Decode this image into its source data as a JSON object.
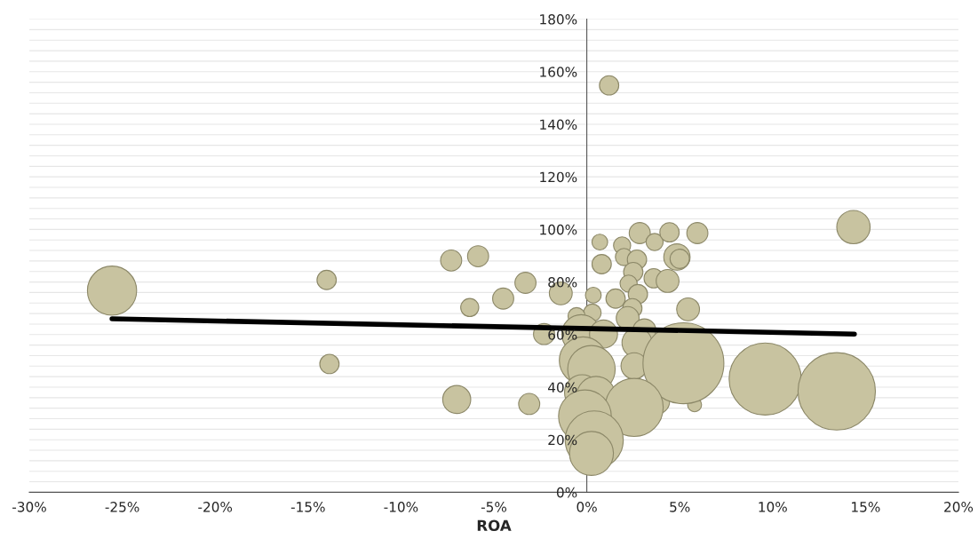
{
  "chart_data": {
    "type": "bubble",
    "xlabel": "ROA",
    "xlim": [
      -30,
      20
    ],
    "ylim": [
      0,
      180
    ],
    "xticks": [
      {
        "value": -30,
        "label": "-30%"
      },
      {
        "value": -25,
        "label": "-25%"
      },
      {
        "value": -20,
        "label": "-20%"
      },
      {
        "value": -15,
        "label": "-15%"
      },
      {
        "value": -10,
        "label": "-10%"
      },
      {
        "value": -5,
        "label": "-5%"
      },
      {
        "value": 0,
        "label": "0%"
      },
      {
        "value": 5,
        "label": "5%"
      },
      {
        "value": 10,
        "label": "10%"
      },
      {
        "value": 15,
        "label": "15%"
      },
      {
        "value": 20,
        "label": "20%"
      }
    ],
    "yticks": [
      {
        "value": 0,
        "label": "0%"
      },
      {
        "value": 4,
        "label": null
      },
      {
        "value": 8,
        "label": null
      },
      {
        "value": 12,
        "label": null
      },
      {
        "value": 16,
        "label": null
      },
      {
        "value": 20,
        "label": "20%"
      },
      {
        "value": 24,
        "label": null
      },
      {
        "value": 28,
        "label": null
      },
      {
        "value": 32,
        "label": null
      },
      {
        "value": 36,
        "label": null
      },
      {
        "value": 40,
        "label": "40%"
      },
      {
        "value": 44,
        "label": null
      },
      {
        "value": 48,
        "label": null
      },
      {
        "value": 52,
        "label": null
      },
      {
        "value": 56,
        "label": null
      },
      {
        "value": 60,
        "label": "60%"
      },
      {
        "value": 64,
        "label": null
      },
      {
        "value": 68,
        "label": null
      },
      {
        "value": 72,
        "label": null
      },
      {
        "value": 76,
        "label": null
      },
      {
        "value": 80,
        "label": "80%"
      },
      {
        "value": 84,
        "label": null
      },
      {
        "value": 88,
        "label": null
      },
      {
        "value": 92,
        "label": null
      },
      {
        "value": 96,
        "label": null
      },
      {
        "value": 100,
        "label": "100%"
      },
      {
        "value": 104,
        "label": null
      },
      {
        "value": 108,
        "label": null
      },
      {
        "value": 112,
        "label": null
      },
      {
        "value": 116,
        "label": null
      },
      {
        "value": 120,
        "label": "120%"
      },
      {
        "value": 124,
        "label": null
      },
      {
        "value": 128,
        "label": null
      },
      {
        "value": 132,
        "label": null
      },
      {
        "value": 136,
        "label": null
      },
      {
        "value": 140,
        "label": "140%"
      },
      {
        "value": 144,
        "label": null
      },
      {
        "value": 148,
        "label": null
      },
      {
        "value": 152,
        "label": null
      },
      {
        "value": 156,
        "label": null
      },
      {
        "value": 160,
        "label": "160%"
      },
      {
        "value": 164,
        "label": null
      },
      {
        "value": 168,
        "label": null
      },
      {
        "value": 172,
        "label": null
      },
      {
        "value": 176,
        "label": null
      },
      {
        "value": 180,
        "label": "180%"
      }
    ],
    "grid": "y",
    "series": [
      {
        "color": "#c8c3a0",
        "x": [
          -25.55,
          -14.0,
          -13.85,
          -7.3,
          -5.85,
          -6.3,
          -7.0,
          -3.1,
          -4.5,
          -3.3,
          -1.4,
          -2.3,
          0.35,
          0.7,
          0.8,
          1.9,
          2.0,
          2.85,
          2.7,
          2.5,
          3.65,
          4.45,
          5.95,
          4.85,
          5.0,
          3.6,
          4.35,
          2.25,
          2.75,
          1.55,
          2.45,
          5.45,
          2.2,
          0.3,
          -0.55,
          -0.3,
          0.9,
          3.1,
          2.7,
          2.55,
          3.75,
          5.8,
          5.2,
          -0.2,
          0.25,
          -0.25,
          0.5,
          2.55,
          -0.1,
          0.4,
          0.25,
          9.6,
          13.45,
          14.35,
          1.2
        ],
        "values": [
          76.7,
          80.8,
          48.8,
          88.2,
          89.8,
          70.3,
          35.3,
          33.6,
          73.7,
          79.7,
          75.7,
          60.2,
          75.0,
          95.2,
          86.8,
          93.9,
          89.5,
          98.6,
          88.5,
          83.8,
          95.2,
          98.9,
          98.6,
          89.5,
          88.8,
          81.4,
          80.4,
          79.4,
          75.4,
          73.7,
          70.0,
          69.6,
          66.3,
          68.3,
          67.0,
          60.2,
          60.2,
          61.6,
          56.9,
          48.1,
          34.7,
          33.3,
          49.1,
          50.1,
          46.8,
          38.0,
          36.7,
          32.3,
          28.9,
          19.9,
          14.8,
          43.1,
          38.4,
          100.9,
          154.8
        ],
        "sizes": [
          0.37,
          0.057,
          0.057,
          0.068,
          0.068,
          0.05,
          0.12,
          0.068,
          0.068,
          0.068,
          0.08,
          0.068,
          0.038,
          0.038,
          0.057,
          0.045,
          0.045,
          0.068,
          0.057,
          0.057,
          0.045,
          0.057,
          0.068,
          0.106,
          0.057,
          0.057,
          0.08,
          0.045,
          0.057,
          0.057,
          0.057,
          0.08,
          0.08,
          0.047,
          0.045,
          0.23,
          0.12,
          0.08,
          0.137,
          0.106,
          0.106,
          0.03,
          1.0,
          0.345,
          0.345,
          0.19,
          0.23,
          0.515,
          0.425,
          0.515,
          0.295,
          0.795,
          0.915,
          0.17,
          0.057
        ]
      },
      {
        "type": "line",
        "color": "#000000",
        "x": [
          -25.55,
          14.4
        ],
        "values": [
          66.0,
          60.2
        ]
      }
    ]
  }
}
